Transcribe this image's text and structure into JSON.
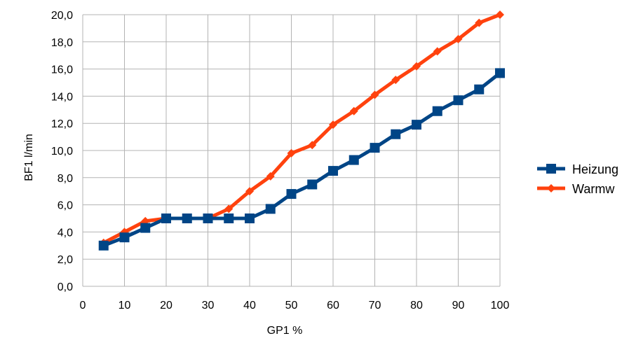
{
  "chart_data": {
    "type": "line",
    "title": "",
    "xlabel": "GP1 %",
    "ylabel": "BF1 l/min",
    "xlim": [
      0,
      100
    ],
    "ylim": [
      0,
      20
    ],
    "x_ticks": [
      0,
      10,
      20,
      30,
      40,
      50,
      60,
      70,
      80,
      90,
      100
    ],
    "x_tick_labels": [
      "0",
      "10",
      "20",
      "30",
      "40",
      "50",
      "60",
      "70",
      "80",
      "90",
      "100"
    ],
    "y_ticks": [
      0,
      2,
      4,
      6,
      8,
      10,
      12,
      14,
      16,
      18,
      20
    ],
    "y_tick_labels": [
      "0,0",
      "2,0",
      "4,0",
      "6,0",
      "8,0",
      "10,0",
      "12,0",
      "14,0",
      "16,0",
      "18,0",
      "20,0"
    ],
    "grid": true,
    "legend_position": "right",
    "series": [
      {
        "name": "Heizung",
        "color": "#004586",
        "marker": "square",
        "x": [
          5,
          10,
          15,
          20,
          25,
          30,
          35,
          40,
          45,
          50,
          55,
          60,
          65,
          70,
          75,
          80,
          85,
          90,
          95,
          100
        ],
        "y": [
          3.0,
          3.6,
          4.3,
          5.0,
          5.0,
          5.0,
          5.0,
          5.0,
          5.7,
          6.8,
          7.5,
          8.5,
          9.3,
          10.2,
          11.2,
          11.9,
          12.9,
          13.7,
          14.5,
          15.7
        ]
      },
      {
        "name": "Warmw",
        "color": "#ff420e",
        "marker": "diamond",
        "x": [
          5,
          10,
          15,
          20,
          25,
          30,
          35,
          40,
          45,
          50,
          55,
          60,
          65,
          70,
          75,
          80,
          85,
          90,
          95,
          100
        ],
        "y": [
          3.2,
          4.0,
          4.8,
          5.0,
          5.0,
          5.0,
          5.7,
          7.0,
          8.1,
          9.8,
          10.4,
          11.9,
          12.9,
          14.1,
          15.2,
          16.2,
          17.3,
          18.2,
          19.4,
          20.0
        ]
      }
    ]
  }
}
